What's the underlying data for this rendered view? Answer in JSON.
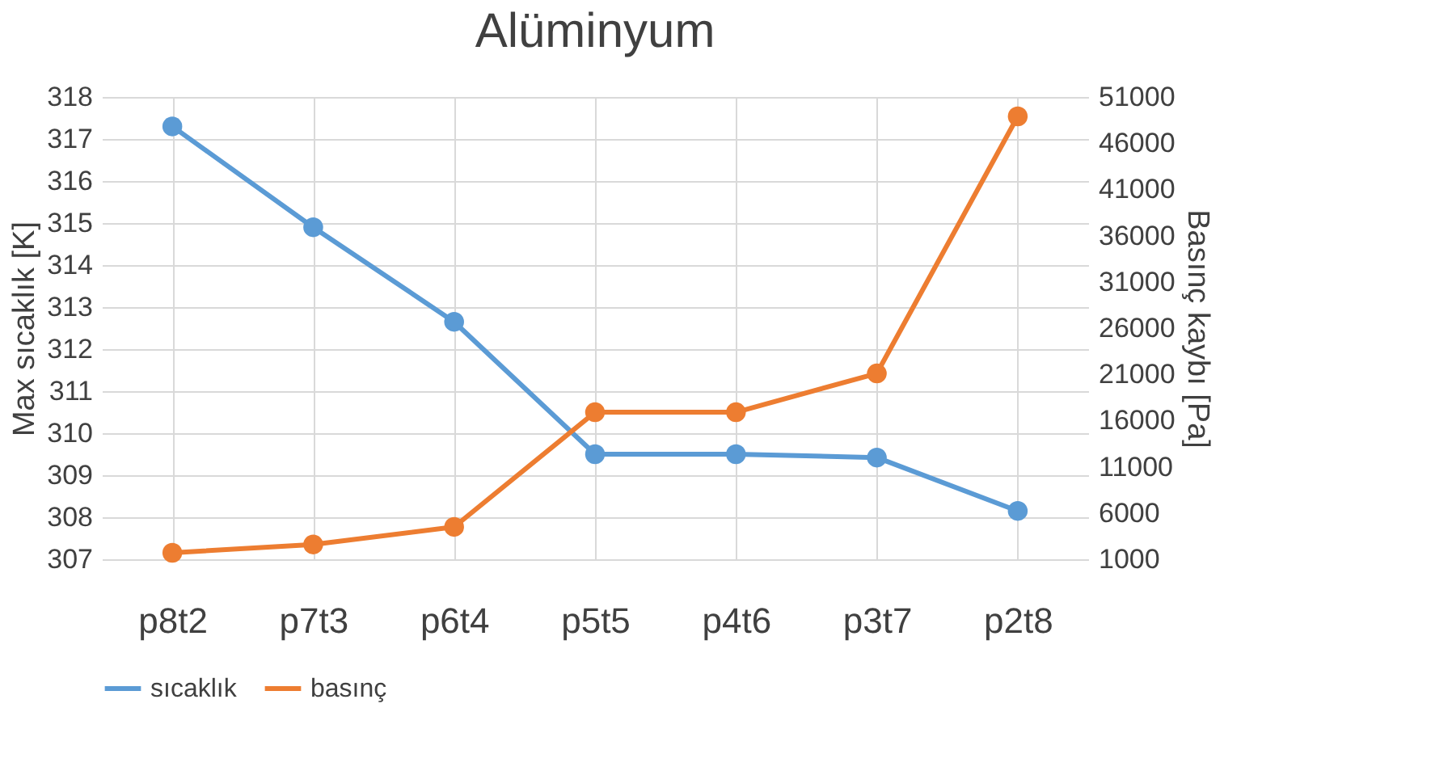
{
  "chart_data": {
    "type": "line",
    "title": "Alüminyum",
    "ylabel": "Max sıcaklık [K]",
    "y2label": "Basınç kaybı [Pa]",
    "categories": [
      "p8t2",
      "p7t3",
      "p6t4",
      "p5t5",
      "p4t6",
      "p3t7",
      "p2t8"
    ],
    "series": [
      {
        "name": "sıcaklık",
        "color": "#5b9bd5",
        "values": [
          317.3,
          314.9,
          312.65,
          309.5,
          309.5,
          309.42,
          308.15
        ]
      },
      {
        "name": "basınç",
        "color": "#ed7d31",
        "axis": "y2",
        "values": [
          1700,
          2600,
          4500,
          16900,
          16900,
          21100,
          48900
        ]
      }
    ],
    "ylim": [
      307,
      318
    ],
    "yticks": [
      307,
      308,
      309,
      310,
      311,
      312,
      313,
      314,
      315,
      316,
      317,
      318
    ],
    "y2lim": [
      1000,
      51000
    ],
    "y2ticks": [
      1000,
      6000,
      11000,
      16000,
      21000,
      26000,
      31000,
      36000,
      41000,
      46000,
      51000
    ],
    "grid": true,
    "legend": "bottom",
    "marker": "circle",
    "line_style": "solid"
  }
}
